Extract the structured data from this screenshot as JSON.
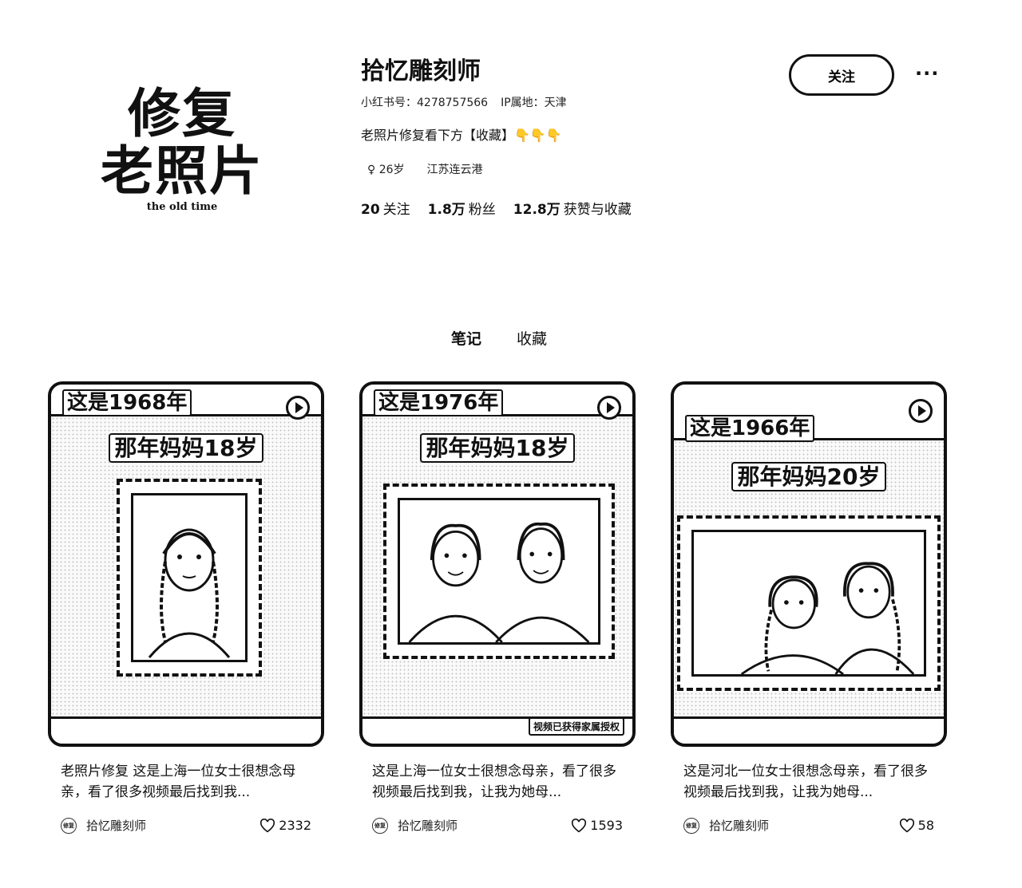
{
  "avatar": {
    "line1": "修复",
    "line2": "老照片",
    "sub": "the old time"
  },
  "profile": {
    "nickname": "拾忆雕刻师",
    "redbook_id": "小红书号：4278757566",
    "ip_location": "IP属地：天津",
    "bio": "老照片修复看下方【收藏】👇👇👇",
    "gender_age": "♀ 26岁",
    "location": "江苏连云港",
    "stats": [
      {
        "num": "20",
        "label": "关注"
      },
      {
        "num": "1.8万",
        "label": "粉丝"
      },
      {
        "num": "12.8万",
        "label": "获赞与收藏"
      }
    ],
    "follow_label": "关注",
    "more_label": "···"
  },
  "tabs": [
    {
      "label": "笔记"
    },
    {
      "label": "收藏"
    }
  ],
  "cards": [
    {
      "year_label": "这是1968年",
      "age_label": "那年妈妈18岁",
      "title": "老照片修复 这是上海一位女士很想念母亲，看了很多视频最后找到我...",
      "author": "拾忆雕刻师",
      "likes": "2332",
      "authorize": ""
    },
    {
      "year_label": "这是1976年",
      "age_label": "那年妈妈18岁",
      "title": "这是上海一位女士很想念母亲，看了很多视频最后找到我，让我为她母...",
      "author": "拾忆雕刻师",
      "likes": "1593",
      "authorize": "视频已获得家属授权"
    },
    {
      "year_label": "这是1966年",
      "age_label": "那年妈妈20岁",
      "title": "这是河北一位女士很想念母亲，看了很多视频最后找到我，让我为她母...",
      "author": "拾忆雕刻师",
      "likes": "58",
      "authorize": ""
    }
  ]
}
